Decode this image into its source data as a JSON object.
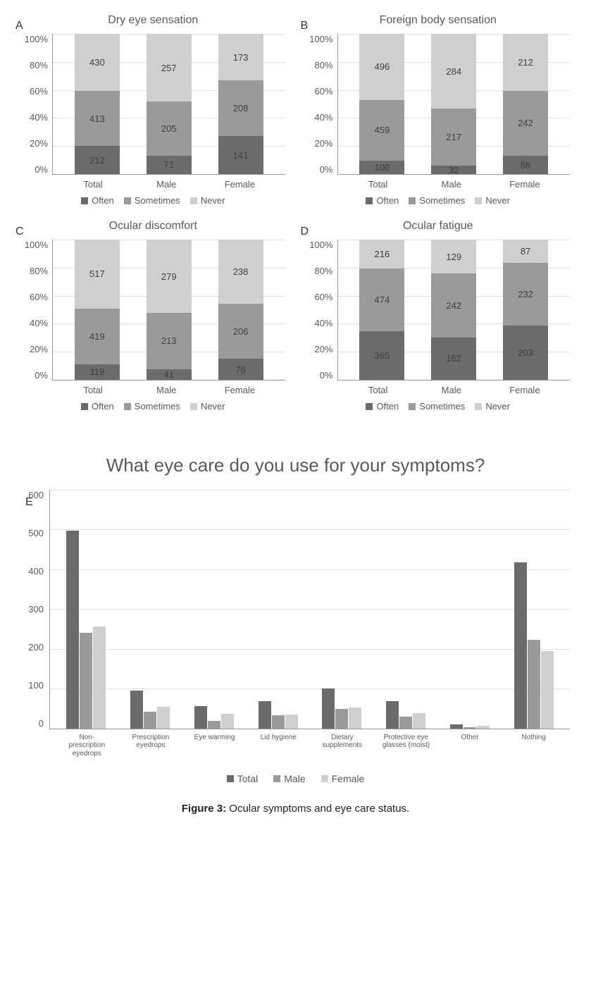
{
  "colors": {
    "often": "#6b6b6b",
    "sometimes": "#9a9a9a",
    "never": "#cfcfcf",
    "grid": "#e0e0e0",
    "axis": "#999999",
    "text": "#595959"
  },
  "stacked": {
    "y_ticks": [
      "100%",
      "80%",
      "60%",
      "40%",
      "20%",
      "0%"
    ],
    "ylim": [
      0,
      100
    ],
    "categories": [
      "Total",
      "Male",
      "Female"
    ],
    "legend": [
      "Often",
      "Sometimes",
      "Never"
    ],
    "panels": [
      {
        "id": "A",
        "title": "Dry eye sensation",
        "groups": [
          {
            "name": "Total",
            "often": 212,
            "sometimes": 413,
            "never": 430
          },
          {
            "name": "Male",
            "often": 71,
            "sometimes": 205,
            "never": 257
          },
          {
            "name": "Female",
            "often": 141,
            "sometimes": 208,
            "never": 173
          }
        ]
      },
      {
        "id": "B",
        "title": "Foreign body sensation",
        "groups": [
          {
            "name": "Total",
            "often": 100,
            "sometimes": 459,
            "never": 496
          },
          {
            "name": "Male",
            "often": 32,
            "sometimes": 217,
            "never": 284
          },
          {
            "name": "Female",
            "often": 68,
            "sometimes": 242,
            "never": 212
          }
        ]
      },
      {
        "id": "C",
        "title": "Ocular discomfort",
        "groups": [
          {
            "name": "Total",
            "often": 119,
            "sometimes": 419,
            "never": 517
          },
          {
            "name": "Male",
            "often": 41,
            "sometimes": 213,
            "never": 279
          },
          {
            "name": "Female",
            "often": 78,
            "sometimes": 206,
            "never": 238
          }
        ]
      },
      {
        "id": "D",
        "title": "Ocular fatigue",
        "groups": [
          {
            "name": "Total",
            "often": 365,
            "sometimes": 474,
            "never": 216
          },
          {
            "name": "Male",
            "often": 162,
            "sometimes": 242,
            "never": 129
          },
          {
            "name": "Female",
            "often": 203,
            "sometimes": 232,
            "never": 87
          }
        ]
      }
    ]
  },
  "grouped": {
    "id": "E",
    "title": "What eye care do you use for your symptoms?",
    "ylim": [
      0,
      600
    ],
    "y_ticks": [
      "600",
      "500",
      "400",
      "300",
      "200",
      "100",
      "0"
    ],
    "legend": [
      "Total",
      "Male",
      "Female"
    ],
    "series_colors": [
      "#6b6b6b",
      "#9a9a9a",
      "#cfcfcf"
    ],
    "categories": [
      {
        "label": "Non-prescription eyedrops",
        "total": 495,
        "male": 240,
        "female": 255
      },
      {
        "label": "Prescription eyedrops",
        "total": 95,
        "male": 42,
        "female": 53
      },
      {
        "label": "Eye warming",
        "total": 55,
        "male": 18,
        "female": 37
      },
      {
        "label": "Lid hygiene",
        "total": 68,
        "male": 33,
        "female": 35
      },
      {
        "label": "Dietary supplements",
        "total": 100,
        "male": 48,
        "female": 52
      },
      {
        "label": "Protective eye glasses (moist)",
        "total": 68,
        "male": 30,
        "female": 38
      },
      {
        "label": "Other",
        "total": 9,
        "male": 3,
        "female": 6
      },
      {
        "label": "Nothing",
        "total": 415,
        "male": 222,
        "female": 193
      }
    ]
  },
  "caption_label": "Figure 3:",
  "caption_text": " Ocular symptoms and eye care status."
}
